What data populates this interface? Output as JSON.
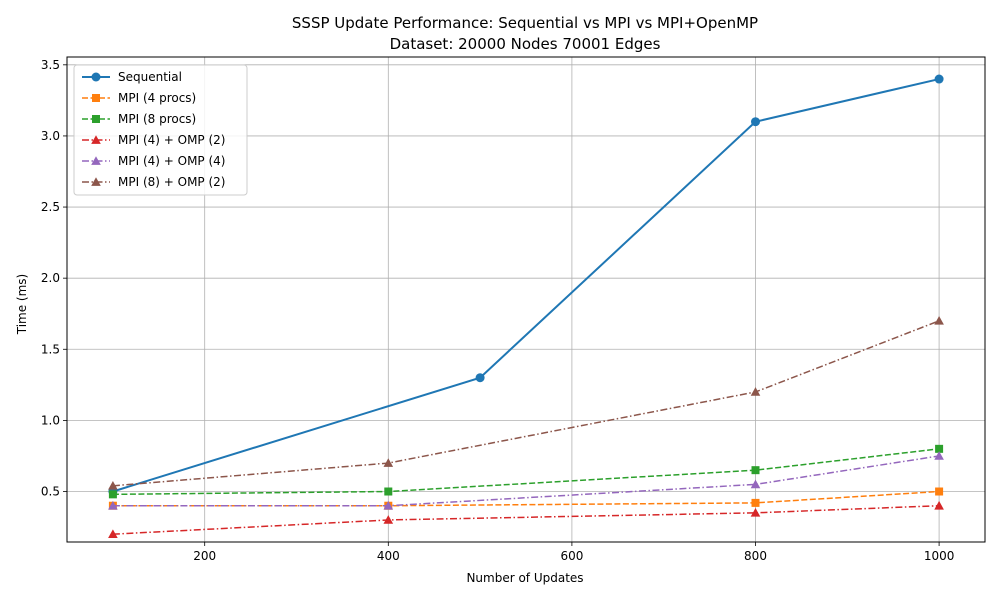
{
  "chart_data": {
    "type": "line",
    "title_line1": "SSSP Update Performance: Sequential vs MPI vs MPI+OpenMP",
    "title_line2": "Dataset: 20000 Nodes 70001 Edges",
    "xlabel": "Number of Updates",
    "ylabel": "Time (ms)",
    "xlim": [
      50,
      1050
    ],
    "ylim": [
      0.145,
      3.555
    ],
    "xticks": [
      200,
      400,
      600,
      800,
      1000
    ],
    "yticks": [
      0.5,
      1.0,
      1.5,
      2.0,
      2.5,
      3.0,
      3.5
    ],
    "xtick_labels": [
      "200",
      "400",
      "600",
      "800",
      "1000"
    ],
    "ytick_labels": [
      "0.5",
      "1.0",
      "1.5",
      "2.0",
      "2.5",
      "3.0",
      "3.5"
    ],
    "grid": true,
    "legend_position": "top-left",
    "series": [
      {
        "name": "Sequential",
        "color": "#1f77b4",
        "marker": "circle",
        "dash": "solid",
        "x": [
          100,
          500,
          800,
          1000
        ],
        "values": [
          0.5,
          1.3,
          3.1,
          3.4
        ]
      },
      {
        "name": "MPI (4 procs)",
        "color": "#ff7f0e",
        "marker": "square",
        "dash": "dashed",
        "x": [
          100,
          400,
          800,
          1000
        ],
        "values": [
          0.4,
          0.4,
          0.42,
          0.5
        ]
      },
      {
        "name": "MPI (8 procs)",
        "color": "#2ca02c",
        "marker": "square",
        "dash": "dashed",
        "x": [
          100,
          400,
          800,
          1000
        ],
        "values": [
          0.48,
          0.5,
          0.65,
          0.8
        ]
      },
      {
        "name": "MPI (4) + OMP (2)",
        "color": "#d62728",
        "marker": "triangle",
        "dash": "dashdot",
        "x": [
          100,
          400,
          800,
          1000
        ],
        "values": [
          0.2,
          0.3,
          0.35,
          0.4
        ]
      },
      {
        "name": "MPI (4) + OMP (4)",
        "color": "#9467bd",
        "marker": "triangle",
        "dash": "dashdot",
        "x": [
          100,
          400,
          800,
          1000
        ],
        "values": [
          0.4,
          0.4,
          0.55,
          0.75
        ]
      },
      {
        "name": "MPI (8) + OMP (2)",
        "color": "#8c564b",
        "marker": "triangle",
        "dash": "dashdot",
        "x": [
          100,
          400,
          800,
          1000
        ],
        "values": [
          0.54,
          0.7,
          1.2,
          1.7
        ]
      }
    ]
  }
}
